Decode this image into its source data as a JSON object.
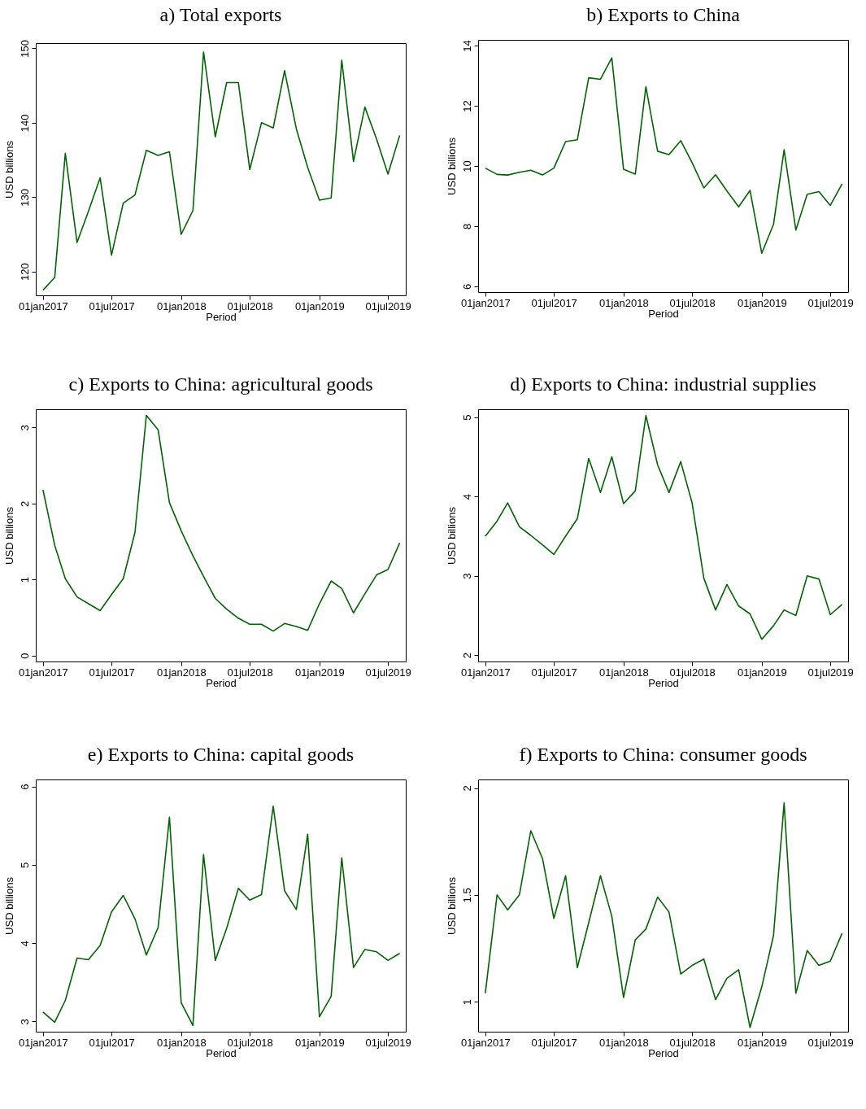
{
  "chart_data": [
    {
      "type": "line",
      "title": "a) Total exports",
      "xlabel": "Period",
      "ylabel": "USD billions",
      "grid": false,
      "x": [
        "2017-01",
        "2017-02",
        "2017-03",
        "2017-04",
        "2017-05",
        "2017-06",
        "2017-07",
        "2017-08",
        "2017-09",
        "2017-10",
        "2017-11",
        "2017-12",
        "2018-01",
        "2018-02",
        "2018-03",
        "2018-04",
        "2018-05",
        "2018-06",
        "2018-07",
        "2018-08",
        "2018-09",
        "2018-10",
        "2018-11",
        "2018-12",
        "2019-01",
        "2019-02",
        "2019-03",
        "2019-04",
        "2019-05",
        "2019-06",
        "2019-07",
        "2019-08"
      ],
      "xlim": [
        "2016-12-13",
        "2019-08-17"
      ],
      "xticks": [
        {
          "value": "2017-01-01",
          "label": "01jan2017"
        },
        {
          "value": "2017-07-01",
          "label": "01jul2017"
        },
        {
          "value": "2018-01-01",
          "label": "01jan2018"
        },
        {
          "value": "2018-07-01",
          "label": "01jul2018"
        },
        {
          "value": "2019-01-01",
          "label": "01jan2019"
        },
        {
          "value": "2019-07-01",
          "label": "01jul2019"
        }
      ],
      "ylim": [
        116.8,
        150.7
      ],
      "yticks": [
        120,
        130,
        140,
        150
      ],
      "series": [
        {
          "color": "#006400",
          "values": [
            117.5,
            119.2,
            135.9,
            123.9,
            128.1,
            132.6,
            122.2,
            129.2,
            130.3,
            136.3,
            135.6,
            136.1,
            125.0,
            128.2,
            149.5,
            138.1,
            145.4,
            145.4,
            133.7,
            140.0,
            139.3,
            147.0,
            139.2,
            134.0,
            129.6,
            129.9,
            148.4,
            134.8,
            142.1,
            137.8,
            133.1,
            138.3
          ]
        }
      ]
    },
    {
      "type": "line",
      "title": "b) Exports to China",
      "xlabel": "Period",
      "ylabel": "USD billions",
      "grid": false,
      "x": [
        "2017-01",
        "2017-02",
        "2017-03",
        "2017-04",
        "2017-05",
        "2017-06",
        "2017-07",
        "2017-08",
        "2017-09",
        "2017-10",
        "2017-11",
        "2017-12",
        "2018-01",
        "2018-02",
        "2018-03",
        "2018-04",
        "2018-05",
        "2018-06",
        "2018-07",
        "2018-08",
        "2018-09",
        "2018-10",
        "2018-11",
        "2018-12",
        "2019-01",
        "2019-02",
        "2019-03",
        "2019-04",
        "2019-05",
        "2019-06",
        "2019-07",
        "2019-08"
      ],
      "xlim": [
        "2016-12-13",
        "2019-08-17"
      ],
      "xticks": [
        {
          "value": "2017-01-01",
          "label": "01jan2017"
        },
        {
          "value": "2017-07-01",
          "label": "01jul2017"
        },
        {
          "value": "2018-01-01",
          "label": "01jan2018"
        },
        {
          "value": "2018-07-01",
          "label": "01jul2018"
        },
        {
          "value": "2019-01-01",
          "label": "01jan2019"
        },
        {
          "value": "2019-07-01",
          "label": "01jul2019"
        }
      ],
      "ylim": [
        5.81,
        14.19
      ],
      "yticks": [
        6,
        8,
        10,
        12,
        14
      ],
      "series": [
        {
          "color": "#006400",
          "values": [
            9.93,
            9.72,
            9.7,
            9.79,
            9.86,
            9.7,
            9.93,
            10.81,
            10.87,
            12.93,
            12.88,
            13.59,
            9.89,
            9.73,
            12.63,
            10.49,
            10.38,
            10.84,
            10.11,
            9.27,
            9.71,
            9.17,
            8.64,
            9.19,
            7.1,
            8.06,
            10.54,
            7.87,
            9.06,
            9.15,
            8.69,
            9.4
          ]
        }
      ]
    },
    {
      "type": "line",
      "title": "c) Exports to China: agricultural goods",
      "xlabel": "Period",
      "ylabel": "USD billions",
      "grid": false,
      "x": [
        "2017-01",
        "2017-02",
        "2017-03",
        "2017-04",
        "2017-05",
        "2017-06",
        "2017-07",
        "2017-08",
        "2017-09",
        "2017-10",
        "2017-11",
        "2017-12",
        "2018-01",
        "2018-02",
        "2018-03",
        "2018-04",
        "2018-05",
        "2018-06",
        "2018-07",
        "2018-08",
        "2018-09",
        "2018-10",
        "2018-11",
        "2018-12",
        "2019-01",
        "2019-02",
        "2019-03",
        "2019-04",
        "2019-05",
        "2019-06",
        "2019-07",
        "2019-08"
      ],
      "xlim": [
        "2016-12-13",
        "2019-08-17"
      ],
      "xticks": [
        {
          "value": "2017-01-01",
          "label": "01jan2017"
        },
        {
          "value": "2017-07-01",
          "label": "01jul2017"
        },
        {
          "value": "2018-01-01",
          "label": "01jan2018"
        },
        {
          "value": "2018-07-01",
          "label": "01jul2018"
        },
        {
          "value": "2019-01-01",
          "label": "01jan2019"
        },
        {
          "value": "2019-07-01",
          "label": "01jul2019"
        }
      ],
      "ylim": [
        -0.08,
        3.24
      ],
      "yticks": [
        0,
        1,
        2,
        3
      ],
      "series": [
        {
          "color": "#006400",
          "values": [
            2.18,
            1.45,
            1.01,
            0.77,
            0.68,
            0.59,
            0.8,
            1.01,
            1.62,
            3.16,
            2.97,
            2.01,
            1.64,
            1.31,
            1.04,
            0.75,
            0.61,
            0.49,
            0.41,
            0.41,
            0.32,
            0.42,
            0.38,
            0.33,
            0.68,
            0.98,
            0.88,
            0.56,
            0.81,
            1.06,
            1.13,
            1.48
          ]
        }
      ]
    },
    {
      "type": "line",
      "title": "d) Exports to China: industrial supplies",
      "xlabel": "Period",
      "ylabel": "USD billions",
      "grid": false,
      "x": [
        "2017-01",
        "2017-02",
        "2017-03",
        "2017-04",
        "2017-05",
        "2017-06",
        "2017-07",
        "2017-08",
        "2017-09",
        "2017-10",
        "2017-11",
        "2017-12",
        "2018-01",
        "2018-02",
        "2018-03",
        "2018-04",
        "2018-05",
        "2018-06",
        "2018-07",
        "2018-08",
        "2018-09",
        "2018-10",
        "2018-11",
        "2018-12",
        "2019-01",
        "2019-02",
        "2019-03",
        "2019-04",
        "2019-05",
        "2019-06",
        "2019-07",
        "2019-08"
      ],
      "xlim": [
        "2016-12-13",
        "2019-08-17"
      ],
      "xticks": [
        {
          "value": "2017-01-01",
          "label": "01jan2017"
        },
        {
          "value": "2017-07-01",
          "label": "01jul2017"
        },
        {
          "value": "2018-01-01",
          "label": "01jan2018"
        },
        {
          "value": "2018-07-01",
          "label": "01jul2018"
        },
        {
          "value": "2019-01-01",
          "label": "01jan2019"
        },
        {
          "value": "2019-07-01",
          "label": "01jul2019"
        }
      ],
      "ylim": [
        1.92,
        5.1
      ],
      "yticks": [
        2,
        3,
        4,
        5
      ],
      "series": [
        {
          "color": "#006400",
          "values": [
            3.5,
            3.69,
            3.92,
            3.62,
            3.51,
            3.39,
            3.27,
            3.5,
            3.72,
            4.48,
            4.05,
            4.5,
            3.91,
            4.07,
            5.02,
            4.4,
            4.05,
            4.44,
            3.92,
            2.97,
            2.57,
            2.89,
            2.62,
            2.52,
            2.2,
            2.37,
            2.57,
            2.5,
            3.0,
            2.96,
            2.51,
            2.64
          ]
        }
      ]
    },
    {
      "type": "line",
      "title": "e) Exports to China: capital goods",
      "xlabel": "Period",
      "ylabel": "USD billions",
      "grid": false,
      "x": [
        "2017-01",
        "2017-02",
        "2017-03",
        "2017-04",
        "2017-05",
        "2017-06",
        "2017-07",
        "2017-08",
        "2017-09",
        "2017-10",
        "2017-11",
        "2017-12",
        "2018-01",
        "2018-02",
        "2018-03",
        "2018-04",
        "2018-05",
        "2018-06",
        "2018-07",
        "2018-08",
        "2018-09",
        "2018-10",
        "2018-11",
        "2018-12",
        "2019-01",
        "2019-02",
        "2019-03",
        "2019-04",
        "2019-05",
        "2019-06",
        "2019-07",
        "2019-08"
      ],
      "xlim": [
        "2016-12-13",
        "2019-08-17"
      ],
      "xticks": [
        {
          "value": "2017-01-01",
          "label": "01jan2017"
        },
        {
          "value": "2017-07-01",
          "label": "01jul2017"
        },
        {
          "value": "2018-01-01",
          "label": "01jan2018"
        },
        {
          "value": "2018-07-01",
          "label": "01jul2018"
        },
        {
          "value": "2019-01-01",
          "label": "01jan2019"
        },
        {
          "value": "2019-07-01",
          "label": "01jul2019"
        }
      ],
      "ylim": [
        2.87,
        6.09
      ],
      "yticks": [
        3,
        4,
        5,
        6
      ],
      "series": [
        {
          "color": "#006400",
          "values": [
            3.12,
            2.99,
            3.27,
            3.81,
            3.79,
            3.97,
            4.4,
            4.61,
            4.31,
            3.85,
            4.2,
            5.61,
            3.24,
            2.95,
            5.13,
            3.78,
            4.19,
            4.7,
            4.55,
            4.62,
            5.75,
            4.67,
            4.43,
            5.39,
            3.06,
            3.32,
            5.09,
            3.69,
            3.92,
            3.89,
            3.78,
            3.87
          ]
        }
      ]
    },
    {
      "type": "line",
      "title": "f) Exports to China: consumer goods",
      "xlabel": "Period",
      "ylabel": "USD billions",
      "grid": false,
      "x": [
        "2017-01",
        "2017-02",
        "2017-03",
        "2017-04",
        "2017-05",
        "2017-06",
        "2017-07",
        "2017-08",
        "2017-09",
        "2017-10",
        "2017-11",
        "2017-12",
        "2018-01",
        "2018-02",
        "2018-03",
        "2018-04",
        "2018-05",
        "2018-06",
        "2018-07",
        "2018-08",
        "2018-09",
        "2018-10",
        "2018-11",
        "2018-12",
        "2019-01",
        "2019-02",
        "2019-03",
        "2019-04",
        "2019-05",
        "2019-06",
        "2019-07",
        "2019-08"
      ],
      "xlim": [
        "2016-12-13",
        "2019-08-17"
      ],
      "xticks": [
        {
          "value": "2017-01-01",
          "label": "01jan2017"
        },
        {
          "value": "2017-07-01",
          "label": "01jul2017"
        },
        {
          "value": "2018-01-01",
          "label": "01jan2018"
        },
        {
          "value": "2018-07-01",
          "label": "01jul2018"
        },
        {
          "value": "2019-01-01",
          "label": "01jan2019"
        },
        {
          "value": "2019-07-01",
          "label": "01jul2019"
        }
      ],
      "ylim": [
        0.86,
        2.04
      ],
      "yticks": [
        1,
        1.5,
        2
      ],
      "series": [
        {
          "color": "#006400",
          "values": [
            1.04,
            1.5,
            1.43,
            1.5,
            1.8,
            1.67,
            1.39,
            1.59,
            1.16,
            1.37,
            1.59,
            1.4,
            1.02,
            1.29,
            1.34,
            1.49,
            1.42,
            1.13,
            1.17,
            1.2,
            1.01,
            1.11,
            1.15,
            0.88,
            1.07,
            1.31,
            1.93,
            1.04,
            1.24,
            1.17,
            1.19,
            1.32
          ]
        }
      ]
    }
  ]
}
